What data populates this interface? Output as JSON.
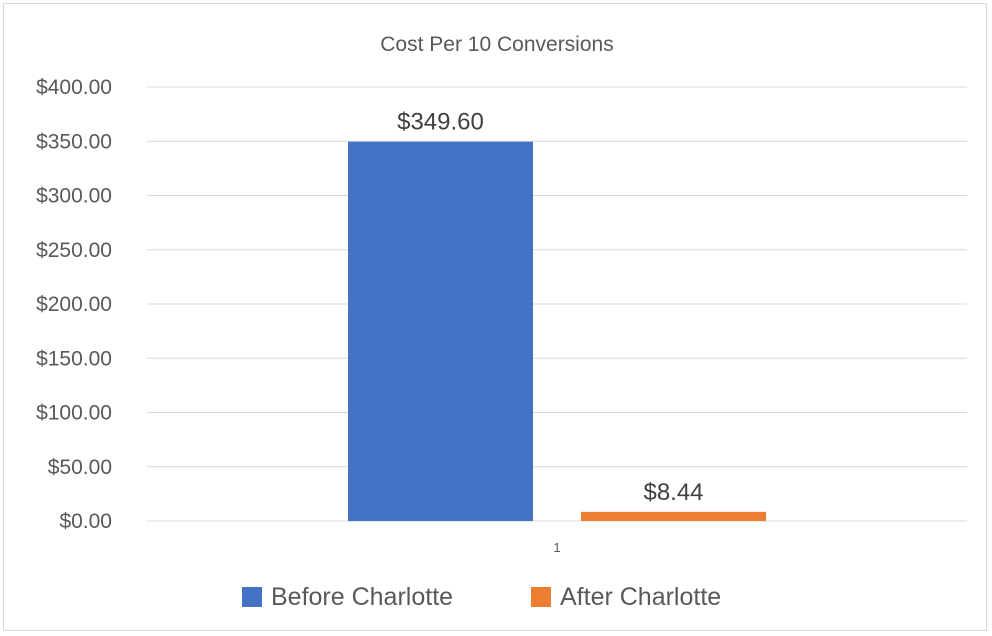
{
  "chart_data": {
    "type": "bar",
    "title": "Cost Per 10 Conversions",
    "categories": [
      "1"
    ],
    "series": [
      {
        "name": "Before Charlotte",
        "values": [
          349.6
        ],
        "labels": [
          "$349.60"
        ],
        "color": "#4472c4"
      },
      {
        "name": "After Charlotte",
        "values": [
          8.44
        ],
        "labels": [
          "$8.44"
        ],
        "color": "#ed7d31"
      }
    ],
    "ylim": [
      0,
      400
    ],
    "yticks": [
      0,
      50,
      100,
      150,
      200,
      250,
      300,
      350,
      400
    ],
    "ytick_labels": [
      "$0.00",
      "$50.00",
      "$100.00",
      "$150.00",
      "$200.00",
      "$250.00",
      "$300.00",
      "$350.00",
      "$400.00"
    ],
    "grid": true,
    "legend": "bottom"
  }
}
